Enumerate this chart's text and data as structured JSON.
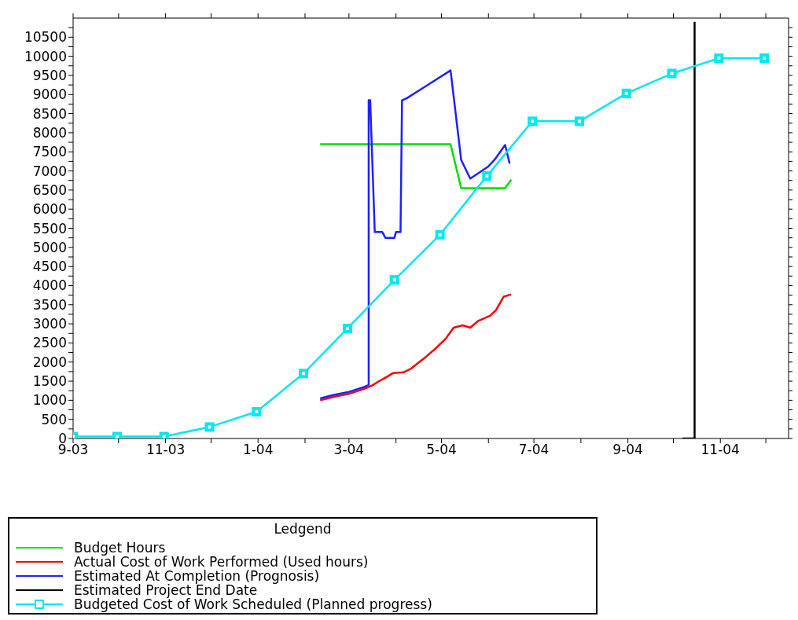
{
  "chart_data": {
    "type": "line",
    "legend_title": "Ledgend",
    "legend": "bottom",
    "grid": false,
    "line_style": "solid",
    "xlim": [
      "2003-09-01",
      "2004-12-16"
    ],
    "xticks": [
      {
        "value": "2003-09-01",
        "label": "9-03"
      },
      {
        "value": "2003-10-01",
        "label": null
      },
      {
        "value": "2003-11-01",
        "label": "11-03"
      },
      {
        "value": "2003-12-01",
        "label": null
      },
      {
        "value": "2004-01-01",
        "label": "1-04"
      },
      {
        "value": "2004-02-01",
        "label": null
      },
      {
        "value": "2004-03-01",
        "label": "3-04"
      },
      {
        "value": "2004-04-01",
        "label": null
      },
      {
        "value": "2004-05-01",
        "label": "5-04"
      },
      {
        "value": "2004-06-01",
        "label": null
      },
      {
        "value": "2004-07-01",
        "label": "7-04"
      },
      {
        "value": "2004-08-01",
        "label": null
      },
      {
        "value": "2004-09-01",
        "label": "9-04"
      },
      {
        "value": "2004-10-01",
        "label": null
      },
      {
        "value": "2004-11-01",
        "label": "11-04"
      },
      {
        "value": "2004-12-01",
        "label": null
      }
    ],
    "ylim": [
      0,
      11000
    ],
    "yticks": [
      0,
      {
        "value": 250,
        "label": null
      },
      500,
      {
        "value": 750,
        "label": null
      },
      1000,
      {
        "value": 1250,
        "label": null
      },
      1500,
      {
        "value": 1750,
        "label": null
      },
      2000,
      {
        "value": 2250,
        "label": null
      },
      2500,
      {
        "value": 2750,
        "label": null
      },
      3000,
      {
        "value": 3250,
        "label": null
      },
      3500,
      {
        "value": 3750,
        "label": null
      },
      4000,
      {
        "value": 4250,
        "label": null
      },
      4500,
      {
        "value": 4750,
        "label": null
      },
      5000,
      {
        "value": 5250,
        "label": null
      },
      5500,
      {
        "value": 5750,
        "label": null
      },
      6000,
      {
        "value": 6250,
        "label": null
      },
      6500,
      {
        "value": 6750,
        "label": null
      },
      7000,
      {
        "value": 7250,
        "label": null
      },
      7500,
      {
        "value": 7750,
        "label": null
      },
      8000,
      {
        "value": 8250,
        "label": null
      },
      8500,
      {
        "value": 8750,
        "label": null
      },
      9000,
      {
        "value": 9250,
        "label": null
      },
      9500,
      {
        "value": 9750,
        "label": null
      },
      10000,
      {
        "value": 10250,
        "label": null
      },
      10500,
      {
        "value": 10750,
        "label": null
      }
    ],
    "series": [
      {
        "name": "Budget Hours",
        "color": "#00e000",
        "marker": "none",
        "x": [
          "2004-02-11",
          "2004-05-07",
          "2004-05-14",
          "2004-06-12",
          "2004-06-16"
        ],
        "values": [
          7700,
          7700,
          6550,
          6550,
          6770
        ]
      },
      {
        "name": "Actual Cost of Work Performed (Used hours)",
        "color": "#ff0000",
        "marker": "none",
        "x": [
          "2004-02-11",
          "2004-02-20",
          "2004-03-01",
          "2004-03-11",
          "2004-03-16",
          "2004-03-20",
          "2004-03-25",
          "2004-03-30",
          "2004-04-06",
          "2004-04-11",
          "2004-04-19",
          "2004-04-27",
          "2004-05-04",
          "2004-05-09",
          "2004-05-15",
          "2004-05-20",
          "2004-05-25",
          "2004-06-02",
          "2004-06-06",
          "2004-06-11",
          "2004-06-16"
        ],
        "values": [
          1000,
          1090,
          1170,
          1300,
          1380,
          1480,
          1590,
          1710,
          1730,
          1830,
          2080,
          2350,
          2620,
          2900,
          2960,
          2900,
          3070,
          3210,
          3360,
          3710,
          3770
        ]
      },
      {
        "name": "Estimated At Completion (Prognosis)",
        "color": "#2020ff",
        "marker": "none",
        "x": [
          "2004-02-11",
          "2004-02-20",
          "2004-03-01",
          "2004-03-11",
          "2004-03-14",
          "2004-03-14",
          "2004-03-15",
          "2004-03-18",
          "2004-03-23",
          "2004-03-25",
          "2004-03-31",
          "2004-04-01",
          "2004-04-04",
          "2004-04-05",
          "2004-04-08",
          "2004-04-20",
          "2004-05-07",
          "2004-05-10",
          "2004-05-14",
          "2004-05-20",
          "2004-06-01",
          "2004-06-05",
          "2004-06-12",
          "2004-06-15"
        ],
        "values": [
          1050,
          1140,
          1220,
          1350,
          1400,
          8850,
          8850,
          5400,
          5400,
          5250,
          5250,
          5400,
          5400,
          8850,
          8900,
          9200,
          9630,
          8630,
          7290,
          6800,
          7120,
          7290,
          7680,
          7190
        ]
      },
      {
        "name": "Estimated Project End Date",
        "color": "#000000",
        "marker": "none",
        "x": [
          "2004-10-07",
          "2004-10-15",
          "2004-10-15"
        ],
        "values": [
          0,
          0,
          10900
        ]
      },
      {
        "name": "Budgeted Cost of Work Scheduled (Planned progress)",
        "color": "#00e8f0",
        "marker": "square",
        "x": [
          "2003-09-01",
          "2003-09-30",
          "2003-10-31",
          "2003-11-30",
          "2003-12-31",
          "2004-01-31",
          "2004-02-29",
          "2004-03-31",
          "2004-04-30",
          "2004-05-31",
          "2004-06-30",
          "2004-07-31",
          "2004-08-31",
          "2004-09-30",
          "2004-10-31",
          "2004-11-30"
        ],
        "values": [
          50,
          50,
          50,
          300,
          700,
          1700,
          2880,
          4150,
          5330,
          6870,
          8300,
          8300,
          9030,
          9550,
          9950,
          9950
        ]
      }
    ]
  }
}
